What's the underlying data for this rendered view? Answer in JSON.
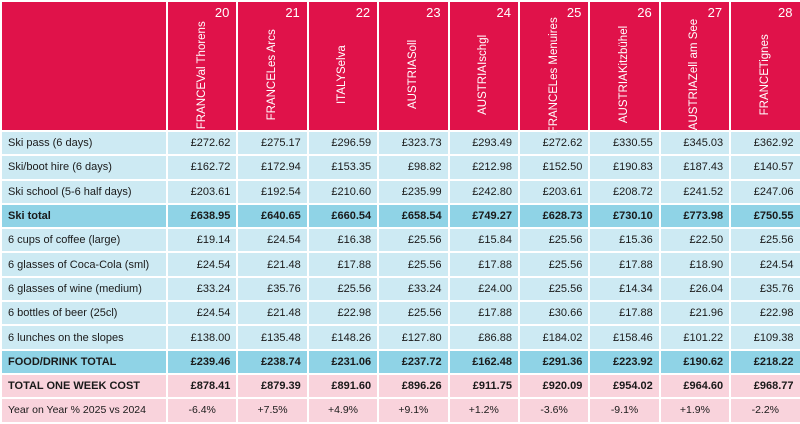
{
  "columns": [
    {
      "rank": "20",
      "country": "FRANCE",
      "resort": "Val Thorens"
    },
    {
      "rank": "21",
      "country": "FRANCE",
      "resort": "Les Arcs"
    },
    {
      "rank": "22",
      "country": "ITALY",
      "resort": "Selva"
    },
    {
      "rank": "23",
      "country": "AUSTRIA",
      "resort": "Soll"
    },
    {
      "rank": "24",
      "country": "AUSTRIA",
      "resort": "Ischgl"
    },
    {
      "rank": "25",
      "country": "FRANCE",
      "resort": "Les Menuires"
    },
    {
      "rank": "26",
      "country": "AUSTRIA",
      "resort": "Kitzbühel"
    },
    {
      "rank": "27",
      "country": "AUSTRIA",
      "resort": "Zell am See"
    },
    {
      "rank": "28",
      "country": "FRANCE",
      "resort": "Tignes"
    }
  ],
  "rows": [
    {
      "style": "light",
      "label": "Ski pass (6 days)",
      "values": [
        "£272.62",
        "£275.17",
        "£296.59",
        "£323.73",
        "£293.49",
        "£272.62",
        "£330.55",
        "£345.03",
        "£362.92"
      ]
    },
    {
      "style": "light",
      "label": "Ski/boot hire (6 days)",
      "values": [
        "£162.72",
        "£172.94",
        "£153.35",
        "£98.82",
        "£212.98",
        "£152.50",
        "£190.83",
        "£187.43",
        "£140.57"
      ]
    },
    {
      "style": "light",
      "label": "Ski school (5-6 half days)",
      "values": [
        "£203.61",
        "£192.54",
        "£210.60",
        "£235.99",
        "£242.80",
        "£203.61",
        "£208.72",
        "£241.52",
        "£247.06"
      ]
    },
    {
      "style": "total",
      "label": "Ski total",
      "values": [
        "£638.95",
        "£640.65",
        "£660.54",
        "£658.54",
        "£749.27",
        "£628.73",
        "£730.10",
        "£773.98",
        "£750.55"
      ]
    },
    {
      "style": "light",
      "label": "6 cups of coffee (large)",
      "values": [
        "£19.14",
        "£24.54",
        "£16.38",
        "£25.56",
        "£15.84",
        "£25.56",
        "£15.36",
        "£22.50",
        "£25.56"
      ]
    },
    {
      "style": "light",
      "label": "6 glasses of Coca-Cola (sml)",
      "values": [
        "£24.54",
        "£21.48",
        "£17.88",
        "£25.56",
        "£17.88",
        "£25.56",
        "£17.88",
        "£18.90",
        "£24.54"
      ]
    },
    {
      "style": "light",
      "label": "6 glasses of wine (medium)",
      "values": [
        "£33.24",
        "£35.76",
        "£25.56",
        "£33.24",
        "£24.00",
        "£25.56",
        "£14.34",
        "£26.04",
        "£35.76"
      ]
    },
    {
      "style": "light",
      "label": "6 bottles of beer (25cl)",
      "values": [
        "£24.54",
        "£21.48",
        "£22.98",
        "£25.56",
        "£17.88",
        "£30.66",
        "£17.88",
        "£21.96",
        "£22.98"
      ]
    },
    {
      "style": "light",
      "label": "6 lunches on the slopes",
      "values": [
        "£138.00",
        "£135.48",
        "£148.26",
        "£127.80",
        "£86.88",
        "£184.02",
        "£158.46",
        "£101.22",
        "£109.38"
      ]
    },
    {
      "style": "total",
      "label": "FOOD/DRINK TOTAL",
      "values": [
        "£239.46",
        "£238.74",
        "£231.06",
        "£237.72",
        "£162.48",
        "£291.36",
        "£223.92",
        "£190.62",
        "£218.22"
      ]
    },
    {
      "style": "grand",
      "label": "TOTAL ONE WEEK COST",
      "values": [
        "£878.41",
        "£879.39",
        "£891.60",
        "£896.26",
        "£911.75",
        "£920.09",
        "£954.02",
        "£964.60",
        "£968.77"
      ]
    },
    {
      "style": "yoy",
      "label": "Year on Year % 2025 vs 2024",
      "values": [
        "-6.4%",
        "+7.5%",
        "+4.9%",
        "+9.1%",
        "+1.2%",
        "-3.6%",
        "-9.1%",
        "+1.9%",
        "-2.2%"
      ]
    }
  ],
  "colors": {
    "header": "#e0124a",
    "light_row": "#cdeaf3",
    "total_row": "#8fd3e6",
    "pink_row": "#f9d3dc"
  }
}
